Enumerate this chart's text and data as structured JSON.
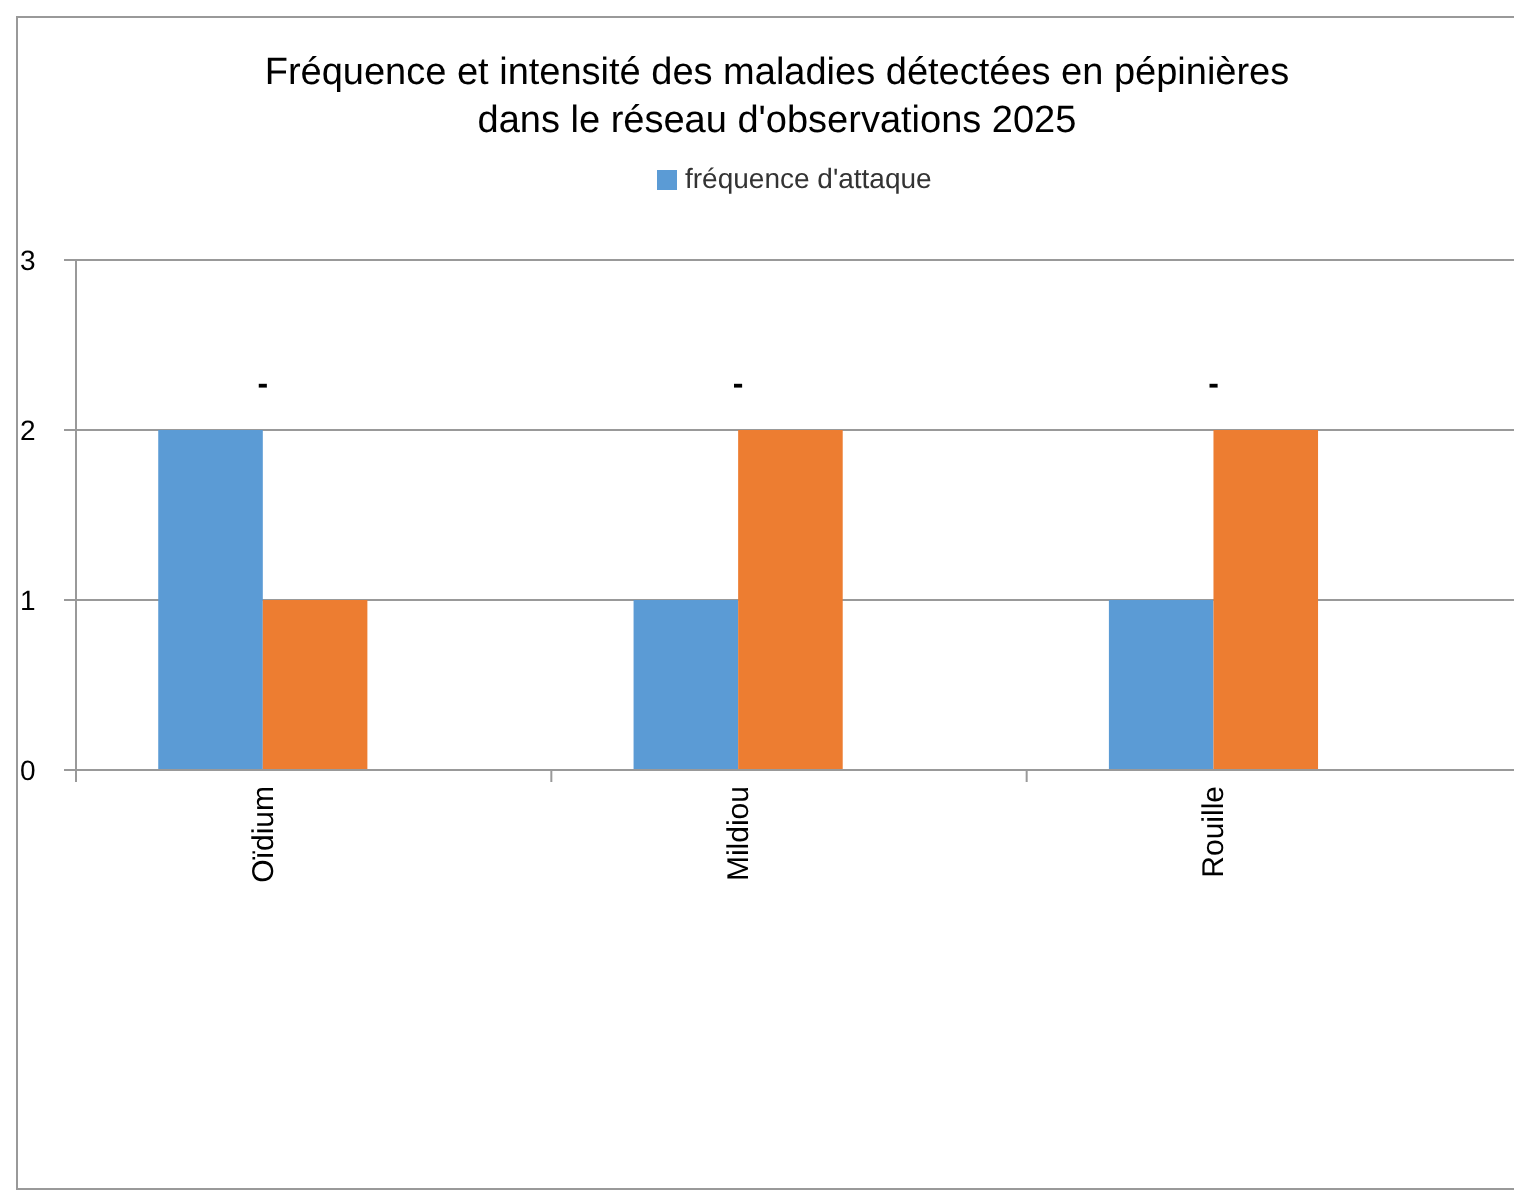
{
  "chart_data": {
    "type": "bar",
    "title": "Fréquence et intensité des maladies détectées en pépinières\ndans le réseau d'observations 2025",
    "categories": [
      "Oïdium",
      "Mildiou",
      "Rouille"
    ],
    "series": [
      {
        "name": "fréquence d'attaque",
        "color": "#5b9bd5",
        "values": [
          2,
          1,
          1
        ]
      },
      {
        "color": "#ed7d31",
        "values": [
          1,
          2,
          2
        ]
      }
    ],
    "ylim": [
      0,
      3
    ],
    "yticks": [
      0,
      1,
      2,
      3
    ],
    "grid": "y",
    "legend": "top",
    "annotations": [
      "-",
      "-",
      "-"
    ]
  }
}
